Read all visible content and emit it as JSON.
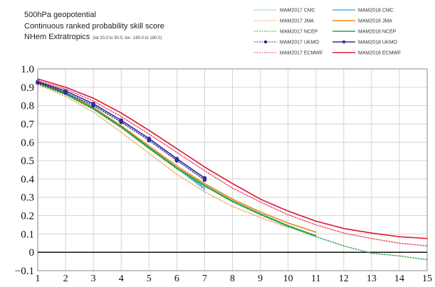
{
  "chart_data": {
    "type": "line",
    "title_lines": [
      "500hPa geopotential",
      "Continuous ranked probability skill score",
      "NHem Extratropics"
    ],
    "title_detail": "(lat 20.0 to 90.0, lon -180.0 to 180.0)",
    "x": [
      1,
      2,
      3,
      4,
      5,
      6,
      7,
      8,
      9,
      10,
      11,
      12,
      13,
      14,
      15
    ],
    "xlim": [
      1,
      15
    ],
    "ylim": [
      -0.1,
      1.0
    ],
    "x_ticks": [
      "1",
      "2",
      "3",
      "4",
      "5",
      "6",
      "7",
      "8",
      "9",
      "10",
      "11",
      "12",
      "13",
      "14",
      "15"
    ],
    "y_ticks": [
      "1.0",
      "0.9",
      "0.8",
      "0.7",
      "0.6",
      "0.5",
      "0.4",
      "0.3",
      "0.2",
      "0.1",
      "0",
      "−0.1"
    ],
    "grid": true,
    "legend_position": "top-right",
    "series": [
      {
        "name": "MAM2017 CMC",
        "color": "#3fb0d0",
        "style": "dotted",
        "marker": false,
        "values": [
          0.92,
          0.86,
          0.78,
          0.68,
          0.57,
          0.46,
          0.34,
          null,
          null,
          null,
          null,
          null,
          null,
          null,
          null
        ]
      },
      {
        "name": "MAM2018 CMC",
        "color": "#46b4e6",
        "style": "solid",
        "marker": false,
        "values": [
          0.925,
          0.865,
          0.785,
          0.685,
          0.575,
          0.46,
          0.35,
          null,
          null,
          null,
          null,
          null,
          null,
          null,
          null
        ]
      },
      {
        "name": "MAM2017 JMA",
        "color": "#f0a050",
        "style": "dotted",
        "marker": false,
        "values": [
          0.915,
          0.85,
          0.765,
          0.655,
          0.54,
          0.425,
          0.33,
          0.25,
          0.19,
          0.135,
          null,
          null,
          null,
          null,
          null
        ]
      },
      {
        "name": "MAM2018 JMA",
        "color": "#f08c14",
        "style": "solid",
        "marker": false,
        "values": [
          0.93,
          0.87,
          0.79,
          0.69,
          0.58,
          0.47,
          0.375,
          0.29,
          0.22,
          0.16,
          0.11,
          null,
          null,
          null,
          null
        ]
      },
      {
        "name": "MAM2017 NCEP",
        "color": "#30a048",
        "style": "dotted",
        "marker": false,
        "values": [
          0.92,
          0.86,
          0.78,
          0.68,
          0.565,
          0.455,
          0.36,
          0.275,
          0.205,
          0.14,
          0.085,
          0.035,
          -0.005,
          -0.02,
          -0.04
        ]
      },
      {
        "name": "MAM2018 NCEP",
        "color": "#28a050",
        "style": "solid",
        "marker": false,
        "values": [
          0.925,
          0.865,
          0.785,
          0.685,
          0.57,
          0.46,
          0.365,
          0.28,
          0.21,
          0.145,
          0.09,
          null,
          null,
          null,
          null
        ]
      },
      {
        "name": "MAM2017 UKMO",
        "color": "#2a2a90",
        "style": "dotted",
        "marker": true,
        "values": [
          0.925,
          0.87,
          0.8,
          0.71,
          0.61,
          0.5,
          0.395,
          null,
          null,
          null,
          null,
          null,
          null,
          null,
          null
        ]
      },
      {
        "name": "MAM2018 UKMO",
        "color": "#30309c",
        "style": "solid",
        "marker": true,
        "values": [
          0.93,
          0.88,
          0.81,
          0.72,
          0.62,
          0.51,
          0.405,
          null,
          null,
          null,
          null,
          null,
          null,
          null,
          null
        ]
      },
      {
        "name": "MAM2017 ECMWF",
        "color": "#e04060",
        "style": "dotted",
        "marker": false,
        "values": [
          0.935,
          0.89,
          0.825,
          0.74,
          0.645,
          0.545,
          0.445,
          0.35,
          0.275,
          0.205,
          0.15,
          0.105,
          0.075,
          0.05,
          0.035
        ]
      },
      {
        "name": "MAM2018 ECMWF",
        "color": "#e0203c",
        "style": "solid",
        "marker": false,
        "values": [
          0.945,
          0.9,
          0.84,
          0.76,
          0.665,
          0.565,
          0.465,
          0.375,
          0.29,
          0.225,
          0.17,
          0.13,
          0.105,
          0.085,
          0.075
        ]
      }
    ]
  }
}
